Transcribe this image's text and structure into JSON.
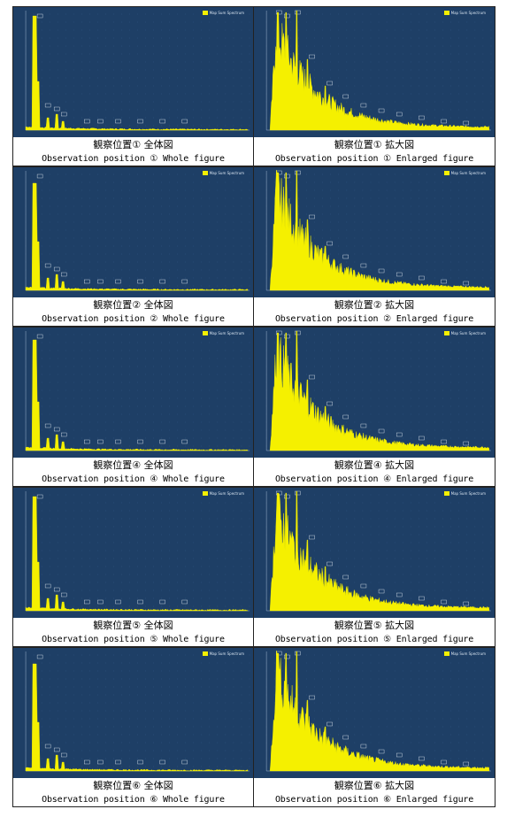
{
  "legend_label": "Map Sum Spectrum",
  "rows": [
    {
      "left": {
        "caption_ja": "観察位置① 全体図",
        "caption_en": "Observation position ① Whole figure"
      },
      "right": {
        "caption_ja": "観察位置① 拡大図",
        "caption_en": "Observation position ① Enlarged figure"
      }
    },
    {
      "left": {
        "caption_ja": "観察位置② 全体図",
        "caption_en": "Observation position ② Whole figure"
      },
      "right": {
        "caption_ja": "観察位置② 拡大図",
        "caption_en": "Observation position ② Enlarged figure"
      }
    },
    {
      "left": {
        "caption_ja": "観察位置④ 全体図",
        "caption_en": "Observation position ④ Whole figure"
      },
      "right": {
        "caption_ja": "観察位置④ 拡大図",
        "caption_en": "Observation position ④ Enlarged figure"
      }
    },
    {
      "left": {
        "caption_ja": "観察位置⑤ 全体図",
        "caption_en": "Observation position ⑤ Whole figure"
      },
      "right": {
        "caption_ja": "観察位置⑤ 拡大図",
        "caption_en": "Observation position ⑤ Enlarged figure"
      }
    },
    {
      "left": {
        "caption_ja": "観察位置⑥ 全体図",
        "caption_en": "Observation position ⑥ Whole figure"
      },
      "right": {
        "caption_ja": "観察位置⑥ 拡大図",
        "caption_en": "Observation position ⑥ Enlarged figure"
      }
    }
  ],
  "colors": {
    "plot_bg": "#1e3f66",
    "spectrum": "#f5f000"
  }
}
